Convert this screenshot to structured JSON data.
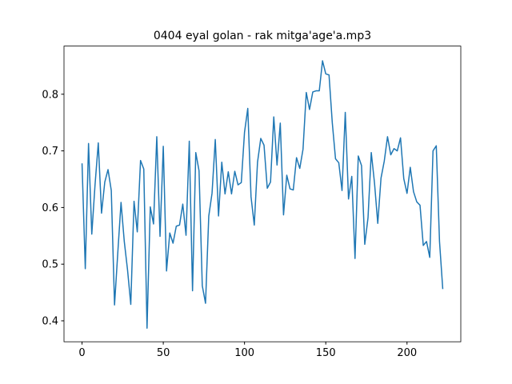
{
  "chart_data": {
    "type": "line",
    "title": "0404 eyal golan - rak mitga'age'a.mp3",
    "x": [
      0,
      2,
      4,
      6,
      8,
      10,
      12,
      14,
      16,
      18,
      20,
      22,
      24,
      26,
      28,
      30,
      32,
      34,
      36,
      38,
      40,
      42,
      44,
      46,
      48,
      50,
      52,
      54,
      56,
      58,
      60,
      62,
      64,
      66,
      68,
      70,
      72,
      74,
      76,
      78,
      80,
      82,
      84,
      86,
      88,
      90,
      92,
      94,
      96,
      98,
      100,
      102,
      104,
      106,
      108,
      110,
      112,
      114,
      116,
      118,
      120,
      122,
      124,
      126,
      128,
      130,
      132,
      134,
      136,
      138,
      140,
      142,
      144,
      146,
      148,
      150,
      152,
      154,
      156,
      158,
      160,
      162,
      164,
      166,
      168,
      170,
      172,
      174,
      176,
      178,
      180,
      182,
      184,
      186,
      188,
      190,
      192,
      194,
      196,
      198,
      200,
      202,
      204,
      206,
      208,
      210,
      212,
      214,
      216,
      218,
      220,
      222
    ],
    "series": [
      {
        "color": "#1f77b4",
        "values": [
          0.678,
          0.492,
          0.713,
          0.553,
          0.64,
          0.714,
          0.59,
          0.645,
          0.667,
          0.63,
          0.428,
          0.52,
          0.609,
          0.54,
          0.49,
          0.429,
          0.611,
          0.557,
          0.683,
          0.668,
          0.387,
          0.601,
          0.571,
          0.725,
          0.549,
          0.708,
          0.488,
          0.555,
          0.537,
          0.567,
          0.569,
          0.606,
          0.551,
          0.717,
          0.453,
          0.697,
          0.665,
          0.462,
          0.431,
          0.585,
          0.625,
          0.72,
          0.585,
          0.68,
          0.624,
          0.663,
          0.624,
          0.664,
          0.64,
          0.644,
          0.733,
          0.775,
          0.619,
          0.569,
          0.68,
          0.722,
          0.71,
          0.634,
          0.645,
          0.76,
          0.675,
          0.749,
          0.587,
          0.657,
          0.633,
          0.631,
          0.688,
          0.669,
          0.703,
          0.803,
          0.773,
          0.804,
          0.806,
          0.806,
          0.859,
          0.836,
          0.834,
          0.75,
          0.686,
          0.679,
          0.63,
          0.768,
          0.615,
          0.655,
          0.51,
          0.691,
          0.674,
          0.535,
          0.582,
          0.697,
          0.643,
          0.572,
          0.652,
          0.682,
          0.725,
          0.693,
          0.704,
          0.7,
          0.723,
          0.651,
          0.625,
          0.671,
          0.628,
          0.61,
          0.604,
          0.533,
          0.54,
          0.512,
          0.7,
          0.709,
          0.54,
          0.456
        ]
      }
    ],
    "xlim": [
      -11.1,
      233.1
    ],
    "xticks": [
      0,
      50,
      100,
      150,
      200
    ],
    "ylim": [
      0.363,
      0.885
    ],
    "yticks": [
      0.4,
      0.5,
      0.6,
      0.7,
      0.8
    ]
  }
}
